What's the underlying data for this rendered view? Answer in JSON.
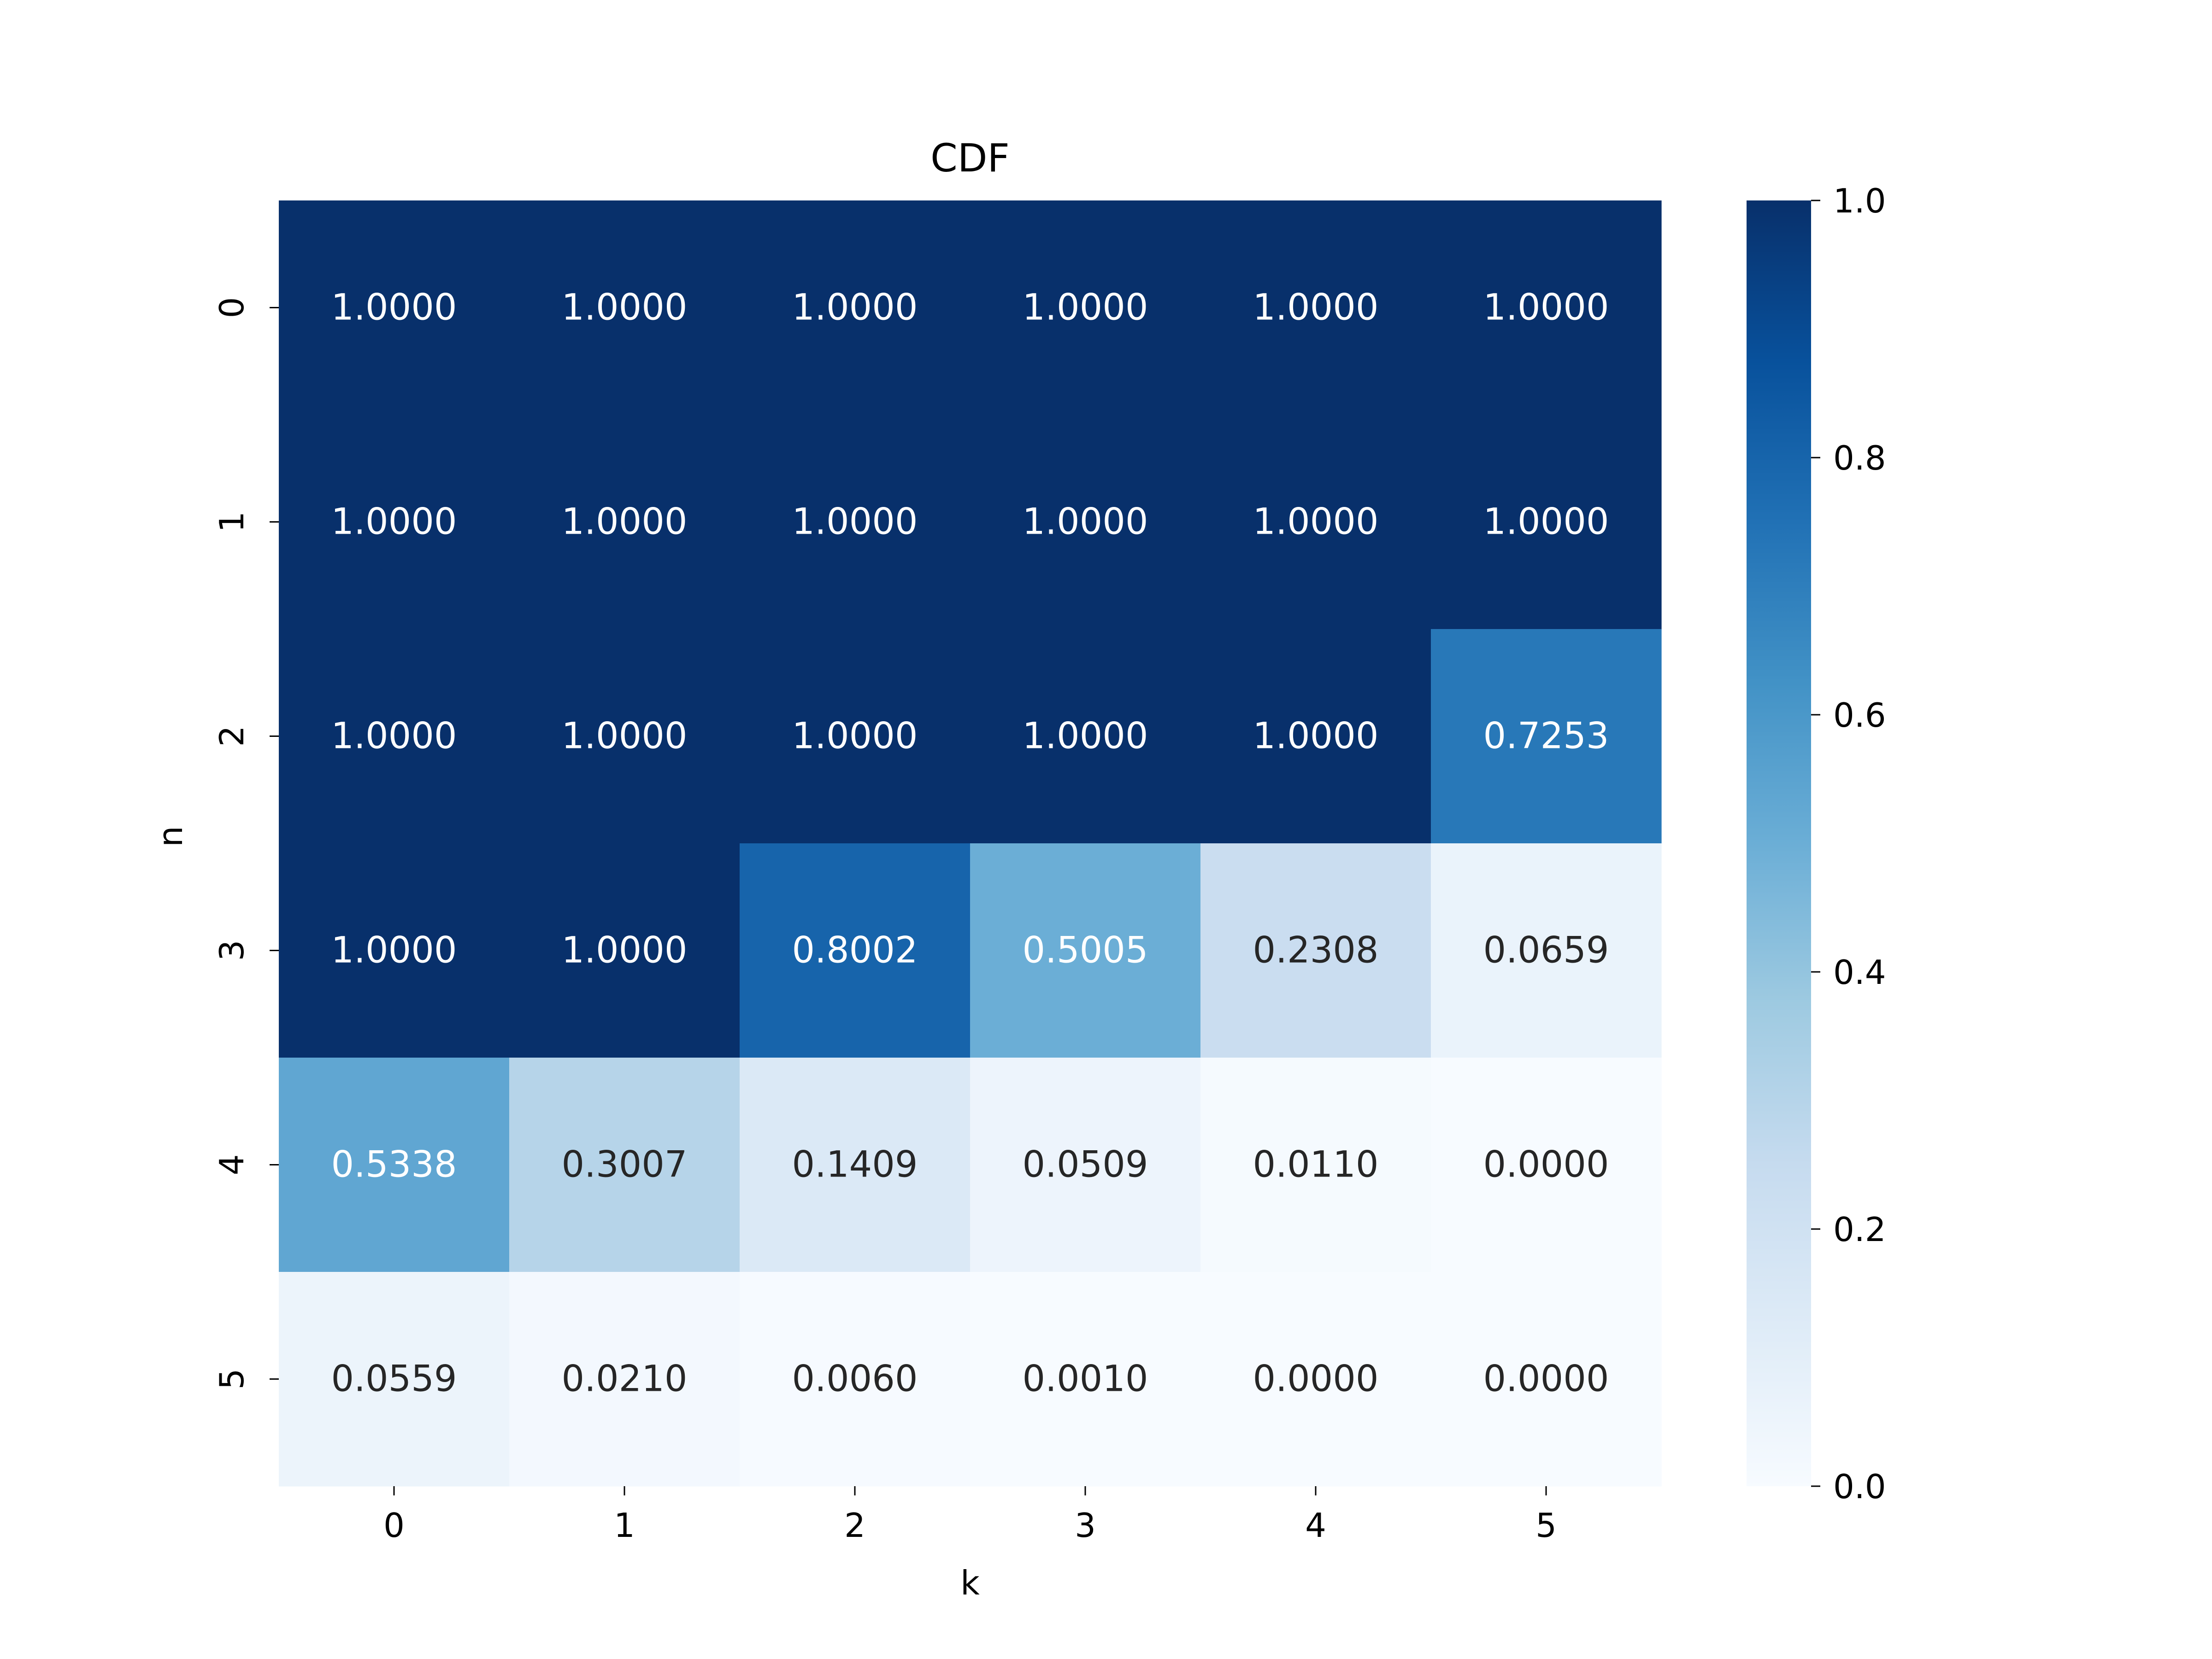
{
  "chart_data": {
    "type": "heatmap",
    "title": "CDF",
    "xlabel": "k",
    "ylabel": "n",
    "x_categories": [
      "0",
      "1",
      "2",
      "3",
      "4",
      "5"
    ],
    "y_categories": [
      "0",
      "1",
      "2",
      "3",
      "4",
      "5"
    ],
    "values": [
      [
        1.0,
        1.0,
        1.0,
        1.0,
        1.0,
        1.0
      ],
      [
        1.0,
        1.0,
        1.0,
        1.0,
        1.0,
        1.0
      ],
      [
        1.0,
        1.0,
        1.0,
        1.0,
        1.0,
        0.7253
      ],
      [
        1.0,
        1.0,
        0.8002,
        0.5005,
        0.2308,
        0.0659
      ],
      [
        0.5338,
        0.3007,
        0.1409,
        0.0509,
        0.011,
        0.0
      ],
      [
        0.0559,
        0.021,
        0.006,
        0.001,
        0.0,
        0.0
      ]
    ],
    "cell_labels": [
      [
        "1.0000",
        "1.0000",
        "1.0000",
        "1.0000",
        "1.0000",
        "1.0000"
      ],
      [
        "1.0000",
        "1.0000",
        "1.0000",
        "1.0000",
        "1.0000",
        "1.0000"
      ],
      [
        "1.0000",
        "1.0000",
        "1.0000",
        "1.0000",
        "1.0000",
        "0.7253"
      ],
      [
        "1.0000",
        "1.0000",
        "0.8002",
        "0.5005",
        "0.2308",
        "0.0659"
      ],
      [
        "0.5338",
        "0.3007",
        "0.1409",
        "0.0509",
        "0.0110",
        "0.0000"
      ],
      [
        "0.0559",
        "0.0210",
        "0.0060",
        "0.0010",
        "0.0000",
        "0.0000"
      ]
    ],
    "colormap": "Blues",
    "value_range": [
      0.0,
      1.0
    ],
    "colorbar": {
      "ticks": [
        0.0,
        0.2,
        0.4,
        0.6,
        0.8,
        1.0
      ],
      "tick_labels": [
        "0.0",
        "0.2",
        "0.4",
        "0.6",
        "0.8",
        "1.0"
      ]
    },
    "colors": {
      "low": "#f7fbff",
      "high": "#08306b",
      "annotation_light": "#ffffff",
      "annotation_dark": "#262626"
    }
  }
}
